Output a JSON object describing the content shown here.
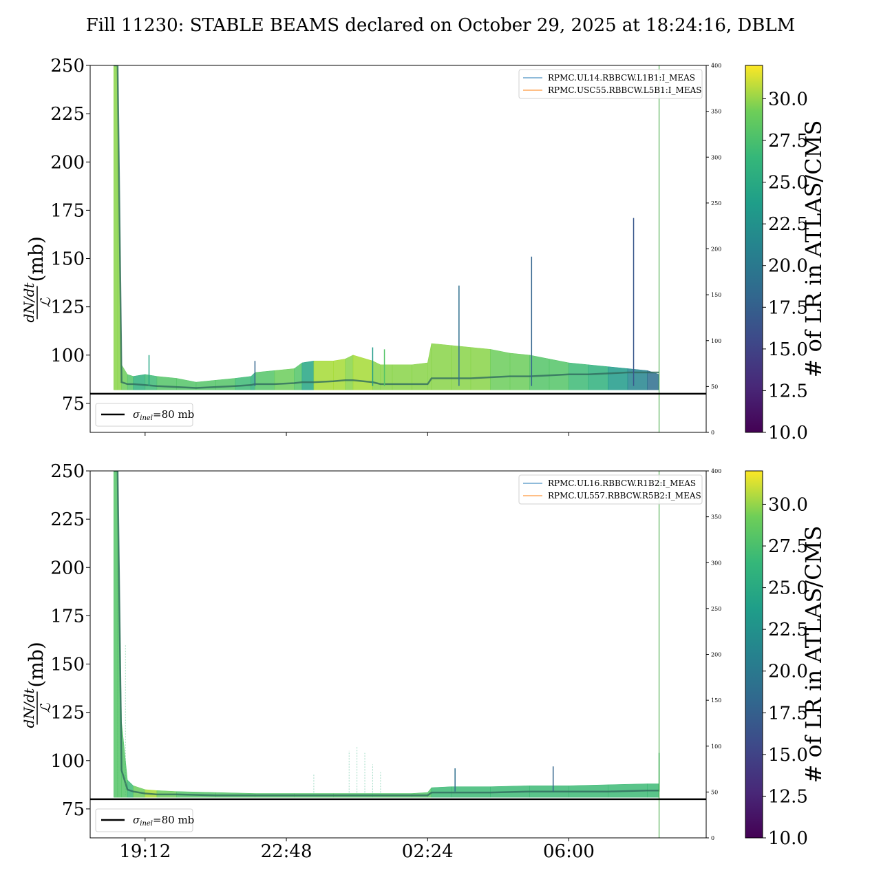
{
  "title": "Fill 11230: STABLE BEAMS declared on October 29, 2025 at 18:24:16, DBLM",
  "x_tick_labels": [
    "19:12",
    "22:48",
    "02:24",
    "06:00"
  ],
  "chart_data": [
    {
      "type": "line",
      "panel": "top",
      "ylabel": "dN/dt / ℒ (mb)",
      "ylabel_num": "dN/dt",
      "ylabel_den": "ℒ",
      "ylabel_unit": "(mb)",
      "ylim": [
        60,
        250
      ],
      "yticks": [
        "75",
        "100",
        "125",
        "150",
        "175",
        "200",
        "225",
        "250"
      ],
      "y2lim": [
        0,
        400
      ],
      "y2ticks": [
        "0",
        "50",
        "100",
        "150",
        "200",
        "250",
        "300",
        "350",
        "400"
      ],
      "xlim_hours": [
        17.8,
        33.5
      ],
      "x_tick_hours": [
        19.2,
        22.8,
        26.4,
        30.0
      ],
      "legend": [
        "RPMC.UL14.RBBCW.L1B1:I_MEAS",
        "RPMC.USC55.RBBCW.L5B1:I_MEAS"
      ],
      "legend_position": "top-right",
      "reference_line": {
        "label_symbol": "σ",
        "label_sub": "inel",
        "label_rest": "=80 mb",
        "value": 80
      },
      "reference_legend_position": "lower-left",
      "colorbar": {
        "label": "# of LR in ATLAS/CMS",
        "range": [
          10,
          32
        ],
        "ticks": [
          "10.0",
          "12.5",
          "15.0",
          "17.5",
          "20.0",
          "22.5",
          "25.0",
          "27.5",
          "30.0"
        ],
        "colormap": "viridis"
      },
      "vertical_marker_hours": 32.3,
      "envelope": {
        "x_hours": [
          18.4,
          18.5,
          18.6,
          18.75,
          18.9,
          19.2,
          19.5,
          20.0,
          20.5,
          21.0,
          21.5,
          21.9,
          22.0,
          22.5,
          23.0,
          23.2,
          23.5,
          24.0,
          24.3,
          24.5,
          25.0,
          25.2,
          25.5,
          26.0,
          26.4,
          26.5,
          27.0,
          27.5,
          28.0,
          28.5,
          29.0,
          29.5,
          30.0,
          30.5,
          31.0,
          31.5,
          32.0,
          32.3
        ],
        "lower": [
          82,
          82,
          82,
          82,
          82,
          82,
          82,
          82,
          82,
          82,
          82,
          82,
          82,
          82,
          82,
          82,
          82,
          82,
          82,
          82,
          82,
          82,
          82,
          82,
          82,
          82,
          82,
          82,
          82,
          82,
          82,
          82,
          82,
          82,
          82,
          82,
          82,
          82
        ],
        "upper": [
          250,
          250,
          95,
          90,
          89,
          90,
          89,
          88,
          86,
          87,
          88,
          89,
          91,
          92,
          93,
          96,
          97,
          97,
          98,
          100,
          97,
          95,
          95,
          95,
          96,
          106,
          105,
          104,
          103,
          101,
          100,
          98,
          96,
          95,
          94,
          93,
          92,
          90
        ],
        "median": [
          250,
          250,
          86,
          85,
          85,
          84.5,
          84,
          83.5,
          83,
          83.5,
          84,
          84.5,
          85,
          85,
          85.5,
          86,
          86,
          86.5,
          87,
          87,
          86,
          85,
          85,
          85,
          85,
          88,
          88,
          88,
          88.5,
          89,
          89,
          89.5,
          90,
          90,
          90.5,
          91,
          91,
          91
        ],
        "color_level": [
          28,
          28,
          27,
          26,
          24,
          25,
          26,
          26,
          26,
          26,
          25,
          24,
          26,
          27,
          26,
          23,
          29,
          29,
          28,
          29,
          28,
          28,
          28,
          28,
          28,
          28,
          28,
          28,
          27,
          27,
          26,
          26,
          25,
          24,
          22,
          20,
          18,
          18
        ]
      },
      "spikes": [
        {
          "x_hours": 19.3,
          "value": 100,
          "level": 23
        },
        {
          "x_hours": 22.0,
          "value": 97,
          "level": 17
        },
        {
          "x_hours": 25.0,
          "value": 104,
          "level": 22
        },
        {
          "x_hours": 25.3,
          "value": 103,
          "level": 26
        },
        {
          "x_hours": 27.2,
          "value": 136,
          "level": 18
        },
        {
          "x_hours": 29.05,
          "value": 151,
          "level": 17
        },
        {
          "x_hours": 31.65,
          "value": 171,
          "level": 16
        }
      ]
    },
    {
      "type": "line",
      "panel": "bottom",
      "ylabel": "dN/dt / ℒ (mb)",
      "ylabel_num": "dN/dt",
      "ylabel_den": "ℒ",
      "ylabel_unit": "(mb)",
      "ylim": [
        60,
        250
      ],
      "yticks": [
        "75",
        "100",
        "125",
        "150",
        "175",
        "200",
        "225",
        "250"
      ],
      "y2lim": [
        0,
        400
      ],
      "y2ticks": [
        "0",
        "50",
        "100",
        "150",
        "200",
        "250",
        "300",
        "350",
        "400"
      ],
      "xlim_hours": [
        17.8,
        33.5
      ],
      "x_tick_hours": [
        19.2,
        22.8,
        26.4,
        30.0
      ],
      "legend": [
        "RPMC.UL16.RBBCW.R1B2:I_MEAS",
        "RPMC.UL557.RBBCW.R5B2:I_MEAS"
      ],
      "legend_position": "top-right",
      "reference_line": {
        "label_symbol": "σ",
        "label_sub": "inel",
        "label_rest": "=80 mb",
        "value": 80
      },
      "reference_legend_position": "lower-left",
      "colorbar": {
        "label": "# of LR in ATLAS/CMS",
        "range": [
          10,
          32
        ],
        "ticks": [
          "10.0",
          "12.5",
          "15.0",
          "17.5",
          "20.0",
          "22.5",
          "25.0",
          "27.5",
          "30.0"
        ],
        "colormap": "viridis"
      },
      "vertical_marker_hours": 32.3,
      "envelope": {
        "x_hours": [
          18.4,
          18.5,
          18.6,
          18.75,
          18.9,
          19.2,
          19.5,
          20.0,
          21.0,
          22.0,
          23.0,
          24.0,
          25.0,
          26.0,
          26.4,
          26.5,
          27.0,
          28.0,
          29.0,
          30.0,
          31.0,
          32.0,
          32.3
        ],
        "lower": [
          81,
          81,
          81,
          81,
          81,
          81,
          81,
          81,
          81,
          81,
          81,
          81,
          81,
          81,
          81,
          81,
          81,
          81,
          81,
          81,
          81,
          81,
          81
        ],
        "upper": [
          250,
          250,
          120,
          90,
          87,
          85,
          84.5,
          84,
          83.5,
          83,
          83,
          83,
          83,
          83,
          83.5,
          86,
          86.5,
          86.5,
          87,
          87,
          87.5,
          88,
          88
        ],
        "median": [
          250,
          250,
          95,
          85,
          84,
          83,
          82.5,
          82.5,
          82,
          82,
          82,
          82,
          82,
          82,
          82,
          83.5,
          83.5,
          83.5,
          84,
          84,
          84,
          84.5,
          84.5
        ],
        "color_level": [
          26,
          26,
          26,
          25,
          27,
          29,
          27,
          26,
          26,
          26,
          26,
          26,
          26,
          26,
          26,
          25,
          25,
          25,
          25,
          25,
          25,
          25,
          25
        ]
      },
      "spikes": [
        {
          "x_hours": 27.1,
          "value": 96,
          "level": 18
        },
        {
          "x_hours": 29.6,
          "value": 97,
          "level": 17
        },
        {
          "x_hours": 32.3,
          "value": 104,
          "level": 25
        }
      ],
      "sparse_traces": [
        {
          "x_hours": 18.5,
          "value": 200,
          "level": 26
        },
        {
          "x_hours": 18.7,
          "value": 160,
          "level": 25
        },
        {
          "x_hours": 23.5,
          "value": 93,
          "level": 24
        },
        {
          "x_hours": 24.4,
          "value": 105,
          "level": 24
        },
        {
          "x_hours": 24.6,
          "value": 107,
          "level": 24
        },
        {
          "x_hours": 24.8,
          "value": 104,
          "level": 24
        },
        {
          "x_hours": 25.0,
          "value": 98,
          "level": 24
        },
        {
          "x_hours": 25.2,
          "value": 94,
          "level": 24
        }
      ]
    }
  ]
}
